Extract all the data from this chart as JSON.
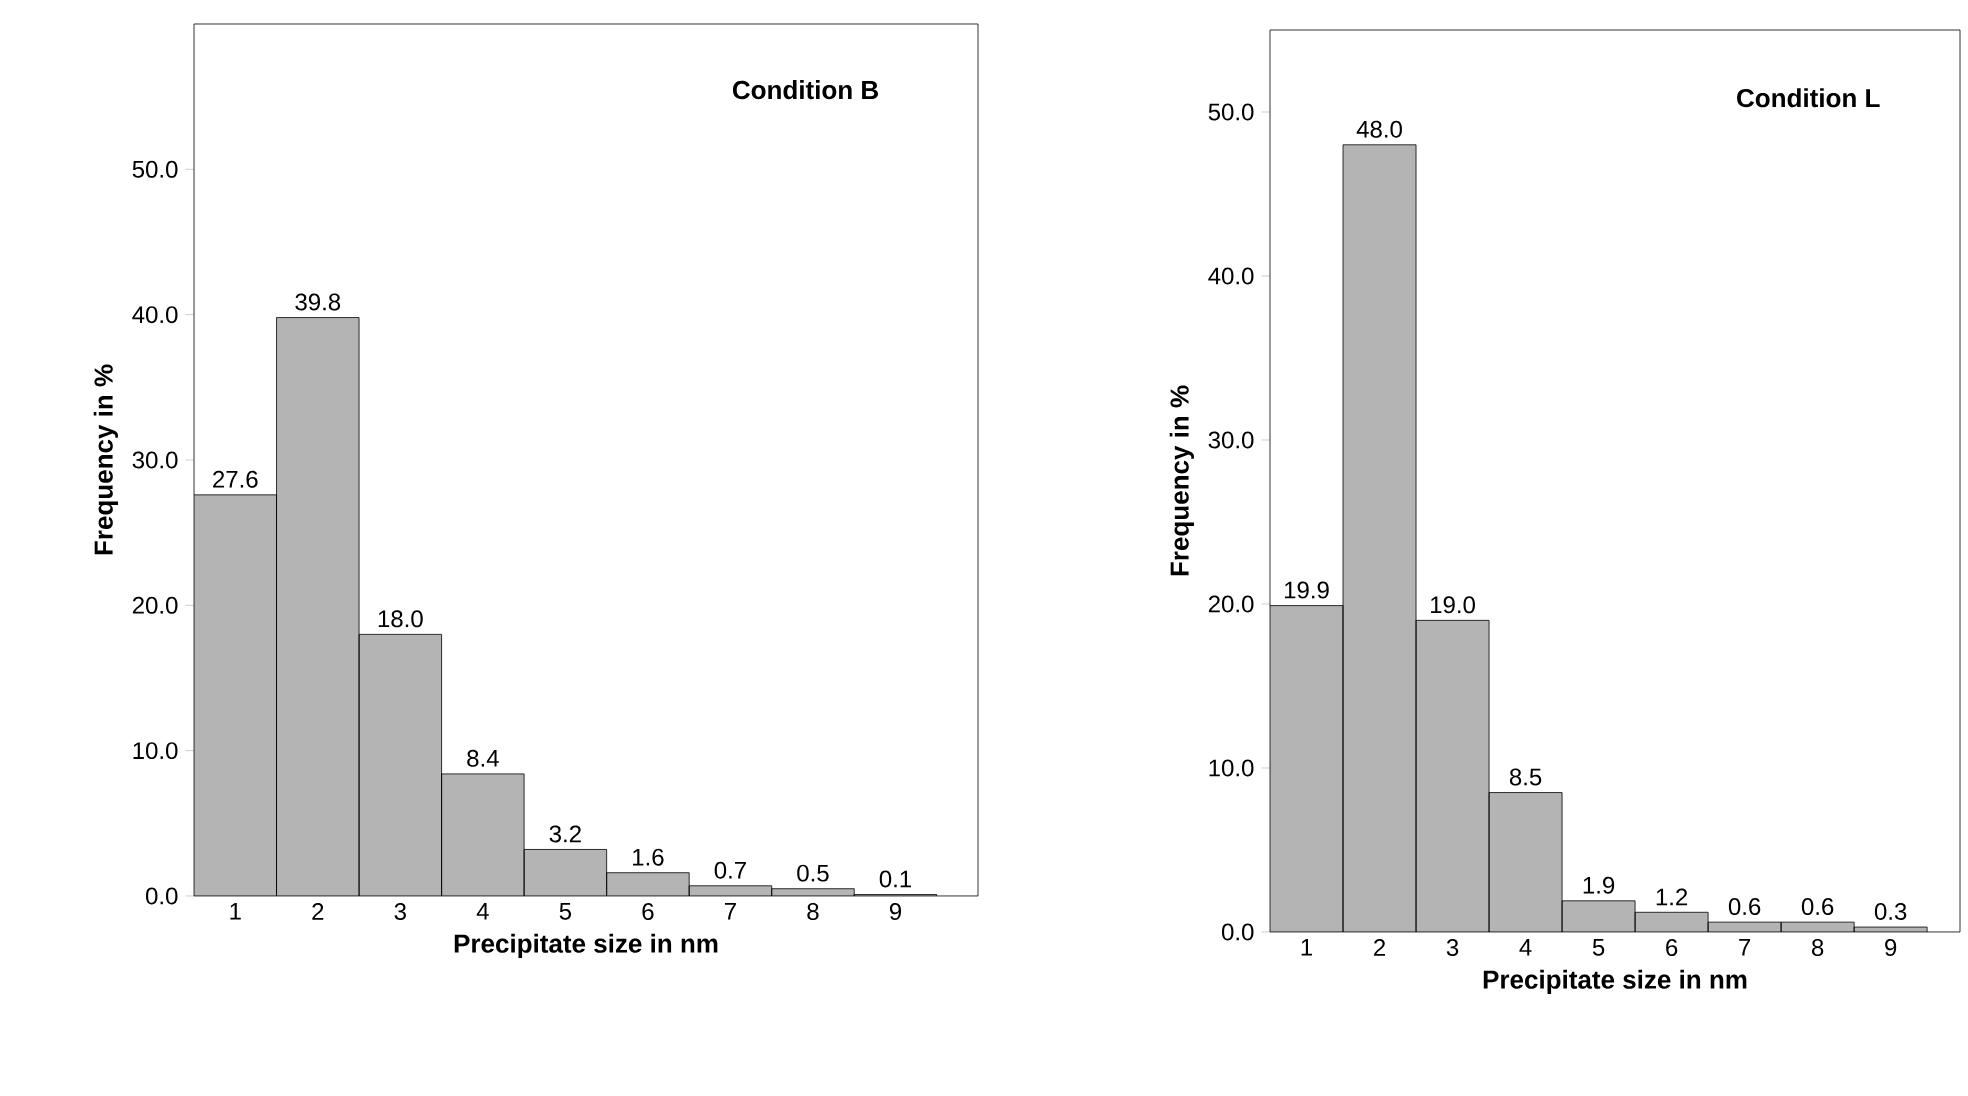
{
  "chart_data": [
    {
      "type": "bar",
      "title": "Condition B",
      "xlabel": "Precipitate size in nm",
      "ylabel": "Frequency in %",
      "categories": [
        "1",
        "2",
        "3",
        "4",
        "5",
        "6",
        "7",
        "8",
        "9"
      ],
      "values": [
        27.6,
        39.8,
        18.0,
        8.4,
        3.2,
        1.6,
        0.7,
        0.5,
        0.1
      ],
      "value_labels": [
        "27.6",
        "39.8",
        "18.0",
        "8.4",
        "3.2",
        "1.6",
        "0.7",
        "0.5",
        "0.1"
      ],
      "color": "#b4b4b4",
      "ylim": [
        0,
        60
      ],
      "yticks": [
        {
          "value": 0,
          "label": "0.0"
        },
        {
          "value": 10,
          "label": "10.0"
        },
        {
          "value": 20,
          "label": "20.0"
        },
        {
          "value": 30,
          "label": "30.0"
        },
        {
          "value": 40,
          "label": "40.0"
        },
        {
          "value": 50,
          "label": "50.0"
        }
      ],
      "grid": false
    },
    {
      "type": "bar",
      "title": "Condition L",
      "xlabel": "Precipitate size in nm",
      "ylabel": "Frequency in %",
      "categories": [
        "1",
        "2",
        "3",
        "4",
        "5",
        "6",
        "7",
        "8",
        "9"
      ],
      "values": [
        19.9,
        48.0,
        19.0,
        8.5,
        1.9,
        1.2,
        0.6,
        0.6,
        0.3
      ],
      "value_labels": [
        "19.9",
        "48.0",
        "19.0",
        "8.5",
        "1.9",
        "1.2",
        "0.6",
        "0.6",
        "0.3"
      ],
      "color": "#b4b4b4",
      "ylim": [
        0,
        55
      ],
      "yticks": [
        {
          "value": 0,
          "label": "0.0"
        },
        {
          "value": 10,
          "label": "10.0"
        },
        {
          "value": 20,
          "label": "20.0"
        },
        {
          "value": 30,
          "label": "30.0"
        },
        {
          "value": 40,
          "label": "40.0"
        },
        {
          "value": 50,
          "label": "50.0"
        }
      ],
      "grid": false
    }
  ]
}
